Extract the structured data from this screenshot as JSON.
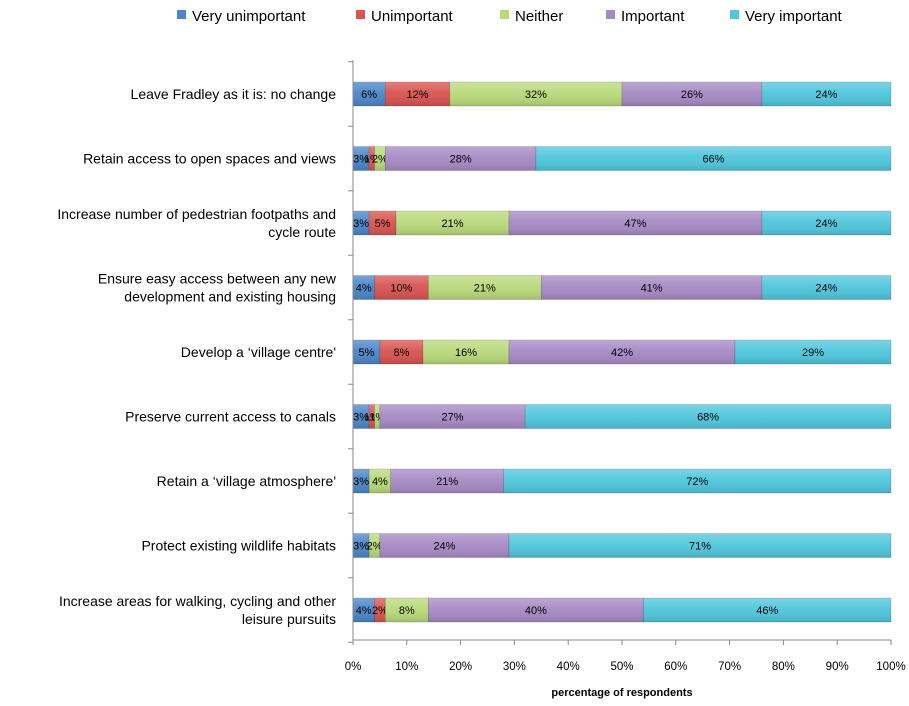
{
  "chart_data": {
    "type": "bar",
    "orientation": "horizontal",
    "stacked": true,
    "percent_stacked": true,
    "title": "",
    "xlabel": "percentage of respondents",
    "ylabel": "",
    "xlim": [
      0,
      100
    ],
    "x_ticks": [
      "0%",
      "10%",
      "20%",
      "30%",
      "40%",
      "50%",
      "60%",
      "70%",
      "80%",
      "90%",
      "100%"
    ],
    "grid": false,
    "legend_position": "top",
    "categories": [
      [
        "Leave Fradley as it is: no change"
      ],
      [
        "Retain access to open spaces and views"
      ],
      [
        "Increase number of  pedestrian footpaths  and",
        "cycle route"
      ],
      [
        "Ensure easy access between any new",
        "development and existing housing"
      ],
      [
        "Develop a ‘village centre'"
      ],
      [
        "Preserve current access to canals"
      ],
      [
        "Retain a ‘village atmosphere'"
      ],
      [
        "Protect existing  wildlife habitats"
      ],
      [
        "Increase areas for walking, cycling and other",
        "leisure pursuits"
      ]
    ],
    "series": [
      {
        "name": "Very  unimportant",
        "color": "#4a86c8",
        "values": [
          6,
          3,
          3,
          4,
          5,
          3,
          3,
          3,
          4
        ],
        "labels": [
          "6%",
          "3%",
          "3%",
          "4%",
          "5%",
          "3%",
          "3%",
          "3%",
          "4%"
        ]
      },
      {
        "name": "Unimportant",
        "color": "#d9534f",
        "values": [
          12,
          1,
          5,
          10,
          8,
          1,
          0,
          0,
          2
        ],
        "labels": [
          "12%",
          "1%",
          "5%",
          "10%",
          "8%",
          "1%",
          "",
          "",
          "2%"
        ]
      },
      {
        "name": "Neither",
        "color": "#b8d97a",
        "values": [
          32,
          2,
          21,
          21,
          16,
          1,
          4,
          2,
          8
        ],
        "labels": [
          "32%",
          "2%",
          "21%",
          "21%",
          "16%",
          "1%",
          "4%",
          "2%",
          "8%"
        ]
      },
      {
        "name": "Important",
        "color": "#a68ac4",
        "values": [
          26,
          28,
          47,
          41,
          42,
          27,
          21,
          24,
          40
        ],
        "labels": [
          "26%",
          "28%",
          "47%",
          "41%",
          "42%",
          "27%",
          "21%",
          "24%",
          "40%"
        ]
      },
      {
        "name": "Very important",
        "color": "#4fc6dc",
        "values": [
          24,
          66,
          24,
          24,
          29,
          68,
          72,
          71,
          46
        ],
        "labels": [
          "24%",
          "66%",
          "24%",
          "24%",
          "29%",
          "68%",
          "72%",
          "71%",
          "46%"
        ]
      }
    ]
  }
}
